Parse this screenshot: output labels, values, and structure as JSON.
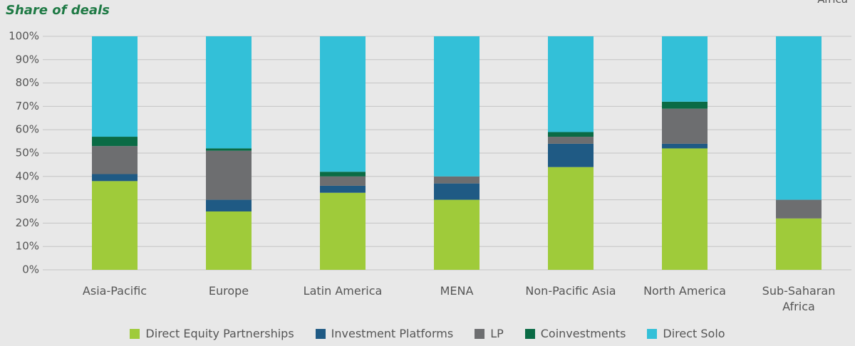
{
  "chart_data": {
    "type": "stacked_bar",
    "title": "Share of deals",
    "annotation": "Africa",
    "categories": [
      "Asia-Pacific",
      "Europe",
      "Latin America",
      "MENA",
      "Non-Pacific Asia",
      "North America",
      "Sub-Saharan Africa"
    ],
    "series": [
      {
        "name": "Direct Equity Partnerships",
        "color": "#9fcb3a",
        "values": [
          38,
          25,
          33,
          30,
          44,
          52,
          22
        ]
      },
      {
        "name": "Investment Platforms",
        "color": "#1f5a84",
        "values": [
          3,
          5,
          3,
          7,
          10,
          2,
          0
        ]
      },
      {
        "name": "LP",
        "color": "#6d6e70",
        "values": [
          12,
          21,
          4,
          3,
          3,
          15,
          8
        ]
      },
      {
        "name": "Coinvestments",
        "color": "#0a6b45",
        "values": [
          4,
          1,
          2,
          0,
          2,
          3,
          0
        ]
      },
      {
        "name": "Direct Solo",
        "color": "#33c0d8",
        "values": [
          43,
          48,
          58,
          60,
          41,
          28,
          70
        ]
      }
    ],
    "ylim": [
      0,
      100
    ],
    "yticks": [
      {
        "value": 0,
        "label": "0%"
      },
      {
        "value": 10,
        "label": "10%"
      },
      {
        "value": 20,
        "label": "20%"
      },
      {
        "value": 30,
        "label": "30%"
      },
      {
        "value": 40,
        "label": "40%"
      },
      {
        "value": 50,
        "label": "50%"
      },
      {
        "value": 60,
        "label": "60%"
      },
      {
        "value": 70,
        "label": "70%"
      },
      {
        "value": 80,
        "label": "80%"
      },
      {
        "value": 90,
        "label": "90%"
      },
      {
        "value": 100,
        "label": "100%"
      }
    ],
    "grid": true
  }
}
